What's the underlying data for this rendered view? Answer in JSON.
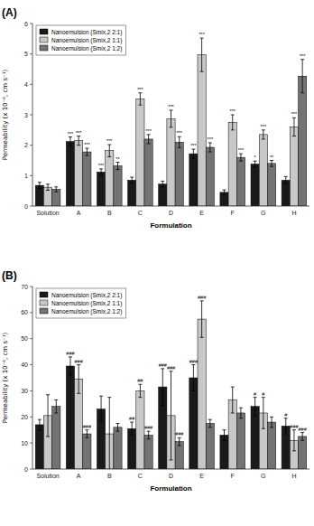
{
  "chart_data": [
    {
      "type": "bar",
      "title": "(A)",
      "categories": [
        "Solution",
        "A",
        "B",
        "C",
        "D",
        "E",
        "F",
        "G",
        "H"
      ],
      "series": [
        {
          "name": "Nanoemulsion (Smix,2 2:1)",
          "color": "#1a1a1a",
          "values": [
            0.68,
            2.12,
            1.12,
            0.85,
            0.72,
            1.72,
            0.45,
            1.38,
            0.85
          ],
          "errors": [
            0.1,
            0.15,
            0.1,
            0.1,
            0.1,
            0.15,
            0.08,
            0.1,
            0.12
          ],
          "annotations": [
            null,
            "***",
            "***",
            null,
            null,
            "***",
            null,
            "*",
            null
          ]
        },
        {
          "name": "Nanoemulsion (Smix,2 1:1)",
          "color": "#c8c8c8",
          "values": [
            0.62,
            2.15,
            1.82,
            3.52,
            2.87,
            4.97,
            2.75,
            2.35,
            2.6
          ],
          "errors": [
            0.1,
            0.15,
            0.2,
            0.2,
            0.28,
            0.55,
            0.25,
            0.15,
            0.3
          ],
          "annotations": [
            null,
            "***",
            "***",
            "***",
            "***",
            "***",
            "***",
            "***",
            "***"
          ]
        },
        {
          "name": "Nanoemulsion (Smix,2 1:2)",
          "color": "#737373",
          "values": [
            0.55,
            1.78,
            1.32,
            2.2,
            2.1,
            1.93,
            1.6,
            1.4,
            4.27
          ],
          "errors": [
            0.08,
            0.12,
            0.12,
            0.15,
            0.18,
            0.15,
            0.12,
            0.1,
            0.55
          ],
          "annotations": [
            null,
            "***",
            "**",
            "***",
            "***",
            "***",
            "***",
            "**",
            "***"
          ]
        }
      ],
      "xlabel": "Formulation",
      "ylabel": "Permeability (x 10⁻⁶, cm s⁻¹)",
      "ylim": [
        0,
        6
      ],
      "yticks": [
        0,
        1,
        2,
        3,
        4,
        5,
        6
      ],
      "grid": false,
      "legend": "upper left"
    },
    {
      "type": "bar",
      "title": "(B)",
      "categories": [
        "Solution",
        "A",
        "B",
        "C",
        "D",
        "E",
        "F",
        "G",
        "H"
      ],
      "series": [
        {
          "name": "Nanoemulsion (Smix,2 2:1)",
          "color": "#1a1a1a",
          "values": [
            17.0,
            39.5,
            23.0,
            15.5,
            31.5,
            35.0,
            13.0,
            24.0,
            16.5
          ],
          "errors": [
            2.0,
            3.5,
            5.0,
            2.5,
            7.0,
            5.0,
            2.0,
            3.5,
            3.0
          ],
          "annotations": [
            null,
            "###",
            null,
            "##",
            "###",
            "###",
            null,
            "#",
            "#"
          ]
        },
        {
          "name": "Nanoemulsion (Smix,2 1:1)",
          "color": "#c8c8c8",
          "values": [
            20.5,
            34.5,
            13.5,
            30.0,
            20.5,
            57.5,
            26.5,
            21.5,
            11.0
          ],
          "errors": [
            8.0,
            5.5,
            14.0,
            2.5,
            17.0,
            7.0,
            5.0,
            6.0,
            4.0
          ],
          "annotations": [
            null,
            "###",
            null,
            "##",
            "###",
            "###",
            null,
            "#",
            "###"
          ]
        },
        {
          "name": "Nanoemulsion (Smix,2 1:2)",
          "color": "#737373",
          "values": [
            24.0,
            13.5,
            16.0,
            13.0,
            10.5,
            17.5,
            21.5,
            18.0,
            12.5
          ],
          "errors": [
            2.5,
            1.5,
            1.5,
            1.5,
            1.5,
            1.5,
            2.0,
            2.0,
            1.5
          ],
          "annotations": [
            null,
            "###",
            null,
            "###",
            "###",
            null,
            null,
            null,
            "###"
          ]
        }
      ],
      "xlabel": "Formulation",
      "ylabel": "Permeability (x 10⁻⁶, cm s⁻¹)",
      "ylim": [
        0,
        70
      ],
      "yticks": [
        0,
        10,
        20,
        30,
        40,
        50,
        60,
        70
      ],
      "grid": false,
      "legend": "upper left"
    }
  ]
}
